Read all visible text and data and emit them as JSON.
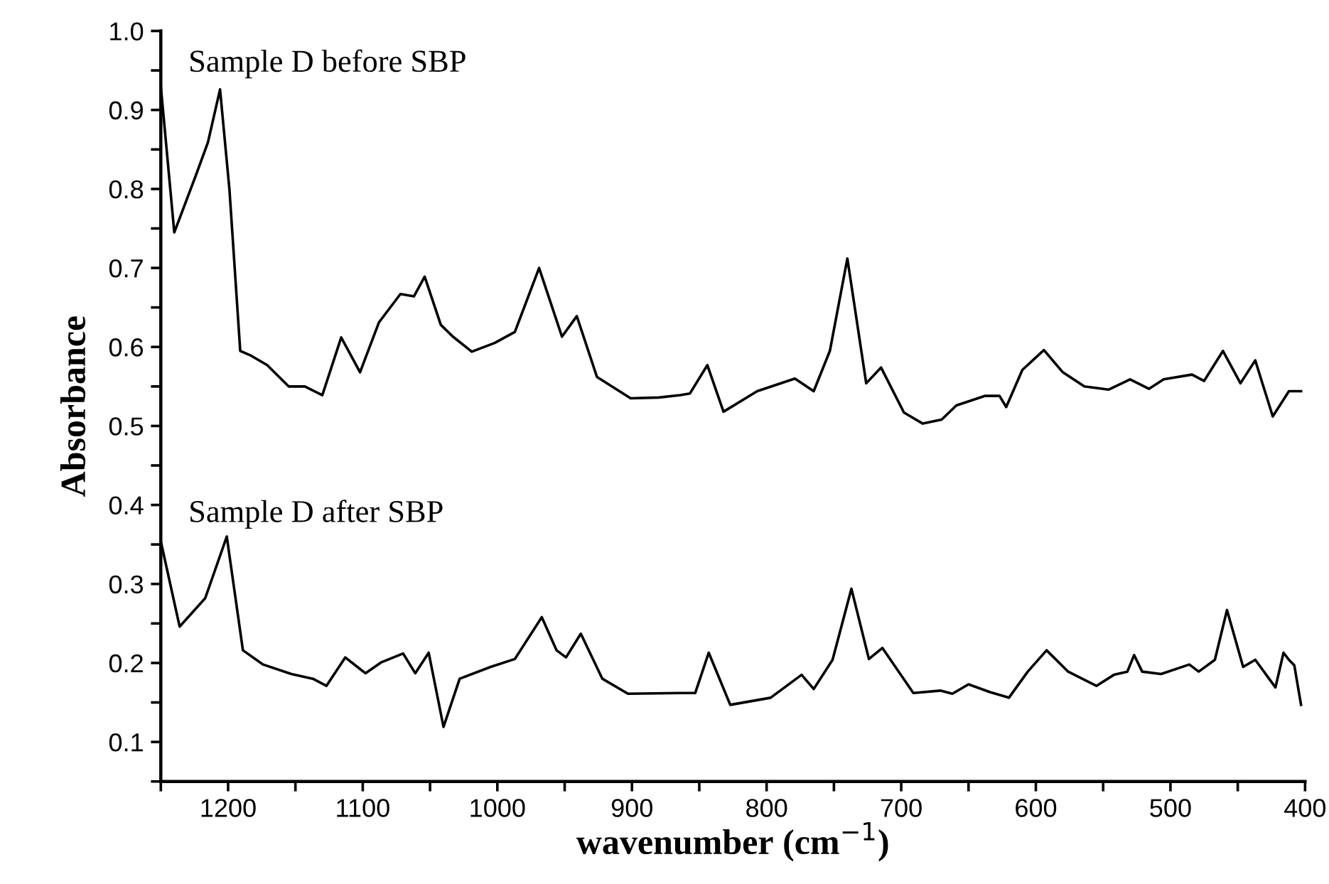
{
  "chart_data": {
    "type": "line",
    "xlabel": "wavenumber (cm$^{−1}$)",
    "ylabel": "Absorbance",
    "xlim": [
      1250,
      400
    ],
    "ylim": [
      0.05,
      1.0
    ],
    "xticks": [
      {
        "value": 1250,
        "label": null
      },
      1200,
      {
        "value": 1150,
        "label": null
      },
      1100,
      {
        "value": 1050,
        "label": null
      },
      1000,
      {
        "value": 950,
        "label": null
      },
      900,
      {
        "value": 850,
        "label": null
      },
      800,
      {
        "value": 750,
        "label": null
      },
      700,
      {
        "value": 650,
        "label": null
      },
      600,
      {
        "value": 550,
        "label": null
      },
      500,
      {
        "value": 450,
        "label": null
      },
      400
    ],
    "yticks": [
      {
        "value": 0.05,
        "label": null
      },
      0.1,
      {
        "value": 0.15,
        "label": null
      },
      0.2,
      {
        "value": 0.25,
        "label": null
      },
      0.3,
      {
        "value": 0.35,
        "label": null
      },
      0.4,
      {
        "value": 0.45,
        "label": null
      },
      0.5,
      {
        "value": 0.55,
        "label": null
      },
      0.6,
      {
        "value": 0.65,
        "label": null
      },
      0.7,
      {
        "value": 0.75,
        "label": null
      },
      0.8,
      {
        "value": 0.85,
        "label": null
      },
      0.9,
      {
        "value": 0.95,
        "label": null
      },
      {
        "value": 1.0,
        "label": "1.0"
      }
    ],
    "grid": false,
    "legend": false,
    "marker": "none",
    "line_style": "solid",
    "series": [
      {
        "name": "Sample D before SBP",
        "color": "#000000",
        "x": [
          1250,
          1240,
          1224,
          1215,
          1206,
          1199,
          1191,
          1183,
          1171,
          1155,
          1143,
          1130,
          1116,
          1102,
          1088,
          1072,
          1062,
          1054,
          1042,
          1033,
          1019,
          1002,
          987,
          969,
          952,
          941,
          926,
          901,
          880,
          864,
          857,
          844,
          832,
          807,
          779,
          765,
          753,
          740,
          726,
          715,
          698,
          684,
          670,
          659,
          638,
          627,
          622,
          610,
          594,
          580,
          564,
          546,
          530,
          516,
          505,
          484,
          475,
          461,
          448,
          437,
          424,
          412,
          403
        ],
        "values": [
          0.93,
          0.745,
          0.817,
          0.859,
          0.926,
          0.799,
          0.595,
          0.589,
          0.577,
          0.55,
          0.55,
          0.539,
          0.612,
          0.568,
          0.631,
          0.667,
          0.664,
          0.689,
          0.628,
          0.613,
          0.594,
          0.605,
          0.619,
          0.7,
          0.613,
          0.639,
          0.562,
          0.535,
          0.536,
          0.539,
          0.541,
          0.577,
          0.518,
          0.544,
          0.56,
          0.544,
          0.595,
          0.712,
          0.554,
          0.574,
          0.517,
          0.503,
          0.508,
          0.526,
          0.538,
          0.538,
          0.524,
          0.571,
          0.596,
          0.568,
          0.55,
          0.546,
          0.559,
          0.547,
          0.559,
          0.565,
          0.557,
          0.595,
          0.554,
          0.583,
          0.512,
          0.544,
          0.544
        ]
      },
      {
        "name": "Sample D after SBP",
        "color": "#000000",
        "x": [
          1250,
          1236,
          1217,
          1201,
          1189,
          1174,
          1153,
          1137,
          1127,
          1113,
          1098,
          1086,
          1070,
          1061,
          1051,
          1040,
          1028,
          1005,
          987,
          967,
          956,
          949,
          938,
          922,
          903,
          864,
          853,
          843,
          827,
          797,
          774,
          765,
          751,
          737,
          724,
          714,
          691,
          671,
          662,
          650,
          634,
          620,
          606,
          592,
          576,
          555,
          542,
          532,
          527,
          521,
          507,
          486,
          479,
          467,
          458,
          446,
          437,
          422,
          416,
          412,
          408,
          403
        ],
        "values": [
          0.354,
          0.246,
          0.282,
          0.36,
          0.216,
          0.198,
          0.186,
          0.18,
          0.171,
          0.207,
          0.187,
          0.201,
          0.212,
          0.187,
          0.213,
          0.119,
          0.18,
          0.195,
          0.205,
          0.258,
          0.216,
          0.207,
          0.237,
          0.18,
          0.161,
          0.162,
          0.162,
          0.213,
          0.147,
          0.156,
          0.185,
          0.167,
          0.204,
          0.294,
          0.205,
          0.219,
          0.162,
          0.165,
          0.161,
          0.173,
          0.163,
          0.156,
          0.189,
          0.216,
          0.189,
          0.171,
          0.185,
          0.189,
          0.21,
          0.189,
          0.186,
          0.198,
          0.189,
          0.204,
          0.267,
          0.195,
          0.204,
          0.169,
          0.213,
          0.204,
          0.197,
          0.147
        ]
      }
    ]
  }
}
